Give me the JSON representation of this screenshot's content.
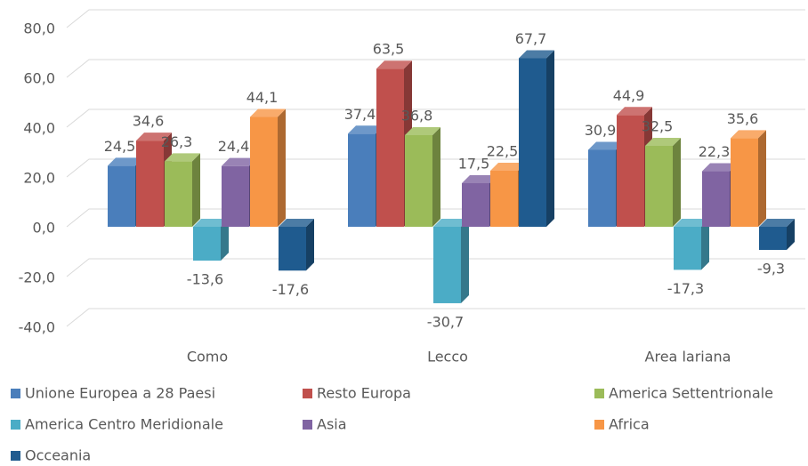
{
  "chart_data": {
    "type": "bar3d",
    "categories": [
      "Como",
      "Lecco",
      "Area lariana"
    ],
    "series": [
      {
        "name": "Unione Europea a 28 Paesi",
        "color": "#4a7ebb",
        "values": [
          24.5,
          37.4,
          30.9
        ],
        "value_labels": [
          "24,5",
          "37,4",
          "30,9"
        ]
      },
      {
        "name": "Resto Europa",
        "color": "#c0504d",
        "values": [
          34.6,
          63.5,
          44.9
        ],
        "value_labels": [
          "34,6",
          "63,5",
          "44,9"
        ]
      },
      {
        "name": "America Settentrionale",
        "color": "#9bbb59",
        "values": [
          26.3,
          36.8,
          32.5
        ],
        "value_labels": [
          "26,3",
          "36,8",
          "32,5"
        ]
      },
      {
        "name": "America Centro Meridionale",
        "color": "#4bacc6",
        "values": [
          -13.6,
          -30.7,
          -17.3
        ],
        "value_labels": [
          "-13,6",
          "-30,7",
          "-17,3"
        ]
      },
      {
        "name": "Asia",
        "color": "#8064a2",
        "values": [
          24.4,
          17.5,
          22.3
        ],
        "value_labels": [
          "24,4",
          "17,5",
          "22,3"
        ]
      },
      {
        "name": "Africa",
        "color": "#f79646",
        "values": [
          44.1,
          22.5,
          35.6
        ],
        "value_labels": [
          "44,1",
          "22,5",
          "35,6"
        ]
      },
      {
        "name": "Occeania",
        "color": "#1f5b8f",
        "values": [
          -17.6,
          67.7,
          -9.3
        ],
        "value_labels": [
          "-17,6",
          "67,7",
          "-9,3"
        ]
      }
    ],
    "ylim": [
      -40,
      80
    ],
    "yticks": [
      {
        "value": -40,
        "label": "-40,0"
      },
      {
        "value": -20,
        "label": "-20,0"
      },
      {
        "value": 0,
        "label": "0,0"
      },
      {
        "value": 20,
        "label": "20,0"
      },
      {
        "value": 40,
        "label": "40,0"
      },
      {
        "value": 60,
        "label": "60,0"
      },
      {
        "value": 80,
        "label": "80,0"
      }
    ],
    "grid": true,
    "legend": "bottom"
  }
}
